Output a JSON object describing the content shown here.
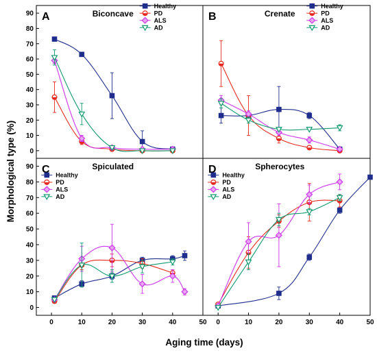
{
  "ylabel": "Morphological type (%)",
  "xlabel": "Aging time (days)",
  "colors": {
    "Healthy": "#1f2d8c",
    "PD": "#e8281e",
    "ALS": "#cc33ee",
    "AD": "#0f9a6e"
  },
  "chart_data": [
    {
      "type": "scatter",
      "panel_label": "A",
      "title": "Biconcave",
      "xlim": [
        -5,
        50
      ],
      "ylim": [
        -5,
        95
      ],
      "yticks": [
        0,
        10,
        20,
        30,
        40,
        50,
        60,
        70,
        80,
        90
      ],
      "xticks": [],
      "legend": "top-right",
      "series": [
        {
          "name": "Healthy",
          "x": [
            1,
            10,
            20,
            30,
            40
          ],
          "y": [
            73,
            63,
            36,
            6,
            1
          ],
          "err": [
            1,
            1,
            15,
            7,
            1
          ]
        },
        {
          "name": "PD",
          "x": [
            1,
            10,
            20,
            30,
            40
          ],
          "y": [
            35,
            6,
            1,
            0,
            0
          ],
          "err": [
            10,
            2,
            1,
            1,
            1
          ]
        },
        {
          "name": "ALS",
          "x": [
            1,
            10,
            20,
            30,
            40
          ],
          "y": [
            59,
            8,
            2,
            1,
            1
          ],
          "err": [
            2,
            2,
            1,
            1,
            1
          ]
        },
        {
          "name": "AD",
          "x": [
            1,
            10,
            20,
            30,
            40
          ],
          "y": [
            61,
            24,
            2,
            0,
            0
          ],
          "err": [
            5,
            7,
            1,
            1,
            1
          ]
        }
      ]
    },
    {
      "type": "scatter",
      "panel_label": "B",
      "title": "Crenate",
      "xlim": [
        -5,
        50
      ],
      "ylim": [
        -5,
        95
      ],
      "yticks": [],
      "xticks": [],
      "legend": "top-right",
      "series": [
        {
          "name": "Healthy",
          "x": [
            1,
            10,
            20,
            30,
            40
          ],
          "y": [
            23,
            23,
            27,
            23,
            1
          ],
          "err": [
            5,
            2,
            15,
            2,
            1
          ]
        },
        {
          "name": "PD",
          "x": [
            1,
            10,
            20,
            30,
            40
          ],
          "y": [
            57,
            23,
            8,
            2,
            0
          ],
          "err": [
            15,
            13,
            3,
            1,
            1
          ]
        },
        {
          "name": "ALS",
          "x": [
            1,
            10,
            20,
            30,
            40
          ],
          "y": [
            33,
            24,
            12,
            7,
            1
          ],
          "err": [
            3,
            2,
            2,
            2,
            1
          ]
        },
        {
          "name": "AD",
          "x": [
            1,
            10,
            20,
            30,
            40
          ],
          "y": [
            31,
            20,
            14,
            14,
            15
          ],
          "err": [
            3,
            2,
            1,
            1,
            2
          ]
        }
      ]
    },
    {
      "type": "scatter",
      "panel_label": "C",
      "title": "Spiculated",
      "xlim": [
        -5,
        50
      ],
      "ylim": [
        -5,
        95
      ],
      "yticks": [
        0,
        10,
        20,
        30,
        40,
        50,
        60,
        70,
        80,
        90
      ],
      "xticks": [
        0,
        10,
        20,
        30,
        40,
        50
      ],
      "legend": "top-left",
      "series": [
        {
          "name": "Healthy",
          "x": [
            1,
            10,
            20,
            30,
            40,
            44
          ],
          "y": [
            6,
            15,
            20,
            30,
            31,
            33
          ],
          "err": [
            1,
            2,
            2,
            2,
            2,
            3
          ]
        },
        {
          "name": "PD",
          "x": [
            1,
            10,
            20,
            30,
            40
          ],
          "y": [
            4,
            27,
            30,
            28,
            22
          ],
          "err": [
            1,
            3,
            4,
            3,
            2
          ]
        },
        {
          "name": "ALS",
          "x": [
            1,
            10,
            20,
            30,
            40,
            44
          ],
          "y": [
            5,
            31,
            38,
            15,
            20,
            10
          ],
          "err": [
            1,
            8,
            15,
            6,
            4,
            2
          ]
        },
        {
          "name": "AD",
          "x": [
            1,
            10,
            20,
            30,
            40
          ],
          "y": [
            5,
            27,
            20,
            26,
            29
          ],
          "err": [
            1,
            14,
            4,
            4,
            2
          ]
        }
      ]
    },
    {
      "type": "scatter",
      "panel_label": "D",
      "title": "Spherocytes",
      "xlim": [
        -5,
        50
      ],
      "ylim": [
        -5,
        95
      ],
      "yticks": [],
      "xticks": [
        0,
        10,
        20,
        30,
        40,
        50
      ],
      "legend": "top-left",
      "series": [
        {
          "name": "Healthy",
          "x": [
            0,
            20,
            30,
            40,
            50
          ],
          "y": [
            1,
            9,
            32,
            62,
            83
          ],
          "err": [
            1,
            4,
            2,
            2,
            1
          ]
        },
        {
          "name": "PD",
          "x": [
            0,
            10,
            20,
            30,
            40
          ],
          "y": [
            2,
            35,
            55,
            67,
            68
          ],
          "err": [
            1,
            10,
            4,
            12,
            4
          ]
        },
        {
          "name": "ALS",
          "x": [
            0,
            10,
            20,
            30,
            40
          ],
          "y": [
            1,
            42,
            46,
            72,
            80
          ],
          "err": [
            1,
            12,
            20,
            6,
            5
          ]
        },
        {
          "name": "AD",
          "x": [
            0,
            10,
            20,
            30,
            40
          ],
          "y": [
            0,
            29,
            56,
            61,
            70
          ],
          "err": [
            1,
            5,
            4,
            2,
            2
          ]
        }
      ]
    }
  ]
}
